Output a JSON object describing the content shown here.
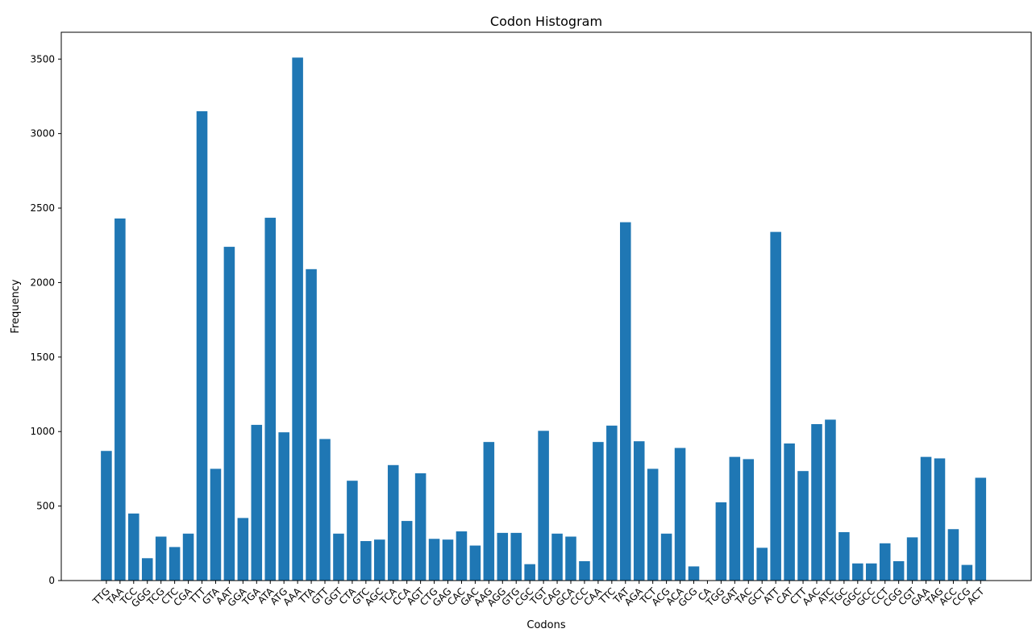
{
  "chart_data": {
    "type": "bar",
    "title": "Codon Histogram",
    "xlabel": "Codons",
    "ylabel": "Frequency",
    "ylim": [
      0,
      3680
    ],
    "yticks": [
      0,
      500,
      1000,
      1500,
      2000,
      2500,
      3000,
      3500
    ],
    "grid": false,
    "legend": "none",
    "bar_color": "#1f77b4",
    "categories": [
      "TTG",
      "TAA",
      "TCC",
      "GGG",
      "TCG",
      "CTC",
      "CGA",
      "TTT",
      "GTA",
      "AAT",
      "GGA",
      "TGA",
      "ATA",
      "ATG",
      "AAA",
      "TTA",
      "GTT",
      "GGT",
      "CTA",
      "GTC",
      "AGC",
      "TCA",
      "CCA",
      "AGT",
      "CTG",
      "GAG",
      "CAC",
      "GAC",
      "AAG",
      "AGG",
      "GTG",
      "CGC",
      "TGT",
      "CAG",
      "GCA",
      "CCC",
      "CAA",
      "TTC",
      "TAT",
      "AGA",
      "TCT",
      "ACG",
      "ACA",
      "GCG",
      "CA",
      "TGG",
      "GAT",
      "TAC",
      "GCT",
      "ATT",
      "CAT",
      "CTT",
      "AAC",
      "ATC",
      "TGC",
      "GGC",
      "GCC",
      "CCT",
      "CGG",
      "CGT",
      "GAA",
      "TAG",
      "ACC",
      "CCG",
      "ACT"
    ],
    "values": [
      870,
      2430,
      450,
      150,
      295,
      225,
      315,
      3150,
      750,
      2240,
      420,
      1045,
      2435,
      995,
      3510,
      2090,
      950,
      315,
      670,
      265,
      275,
      775,
      400,
      720,
      280,
      275,
      330,
      235,
      930,
      320,
      320,
      110,
      1005,
      315,
      295,
      130,
      930,
      1040,
      2405,
      935,
      750,
      315,
      890,
      95,
      0,
      525,
      830,
      815,
      220,
      2340,
      920,
      735,
      1050,
      1080,
      325,
      115,
      115,
      250,
      130,
      290,
      830,
      820,
      345,
      105,
      690
    ]
  }
}
